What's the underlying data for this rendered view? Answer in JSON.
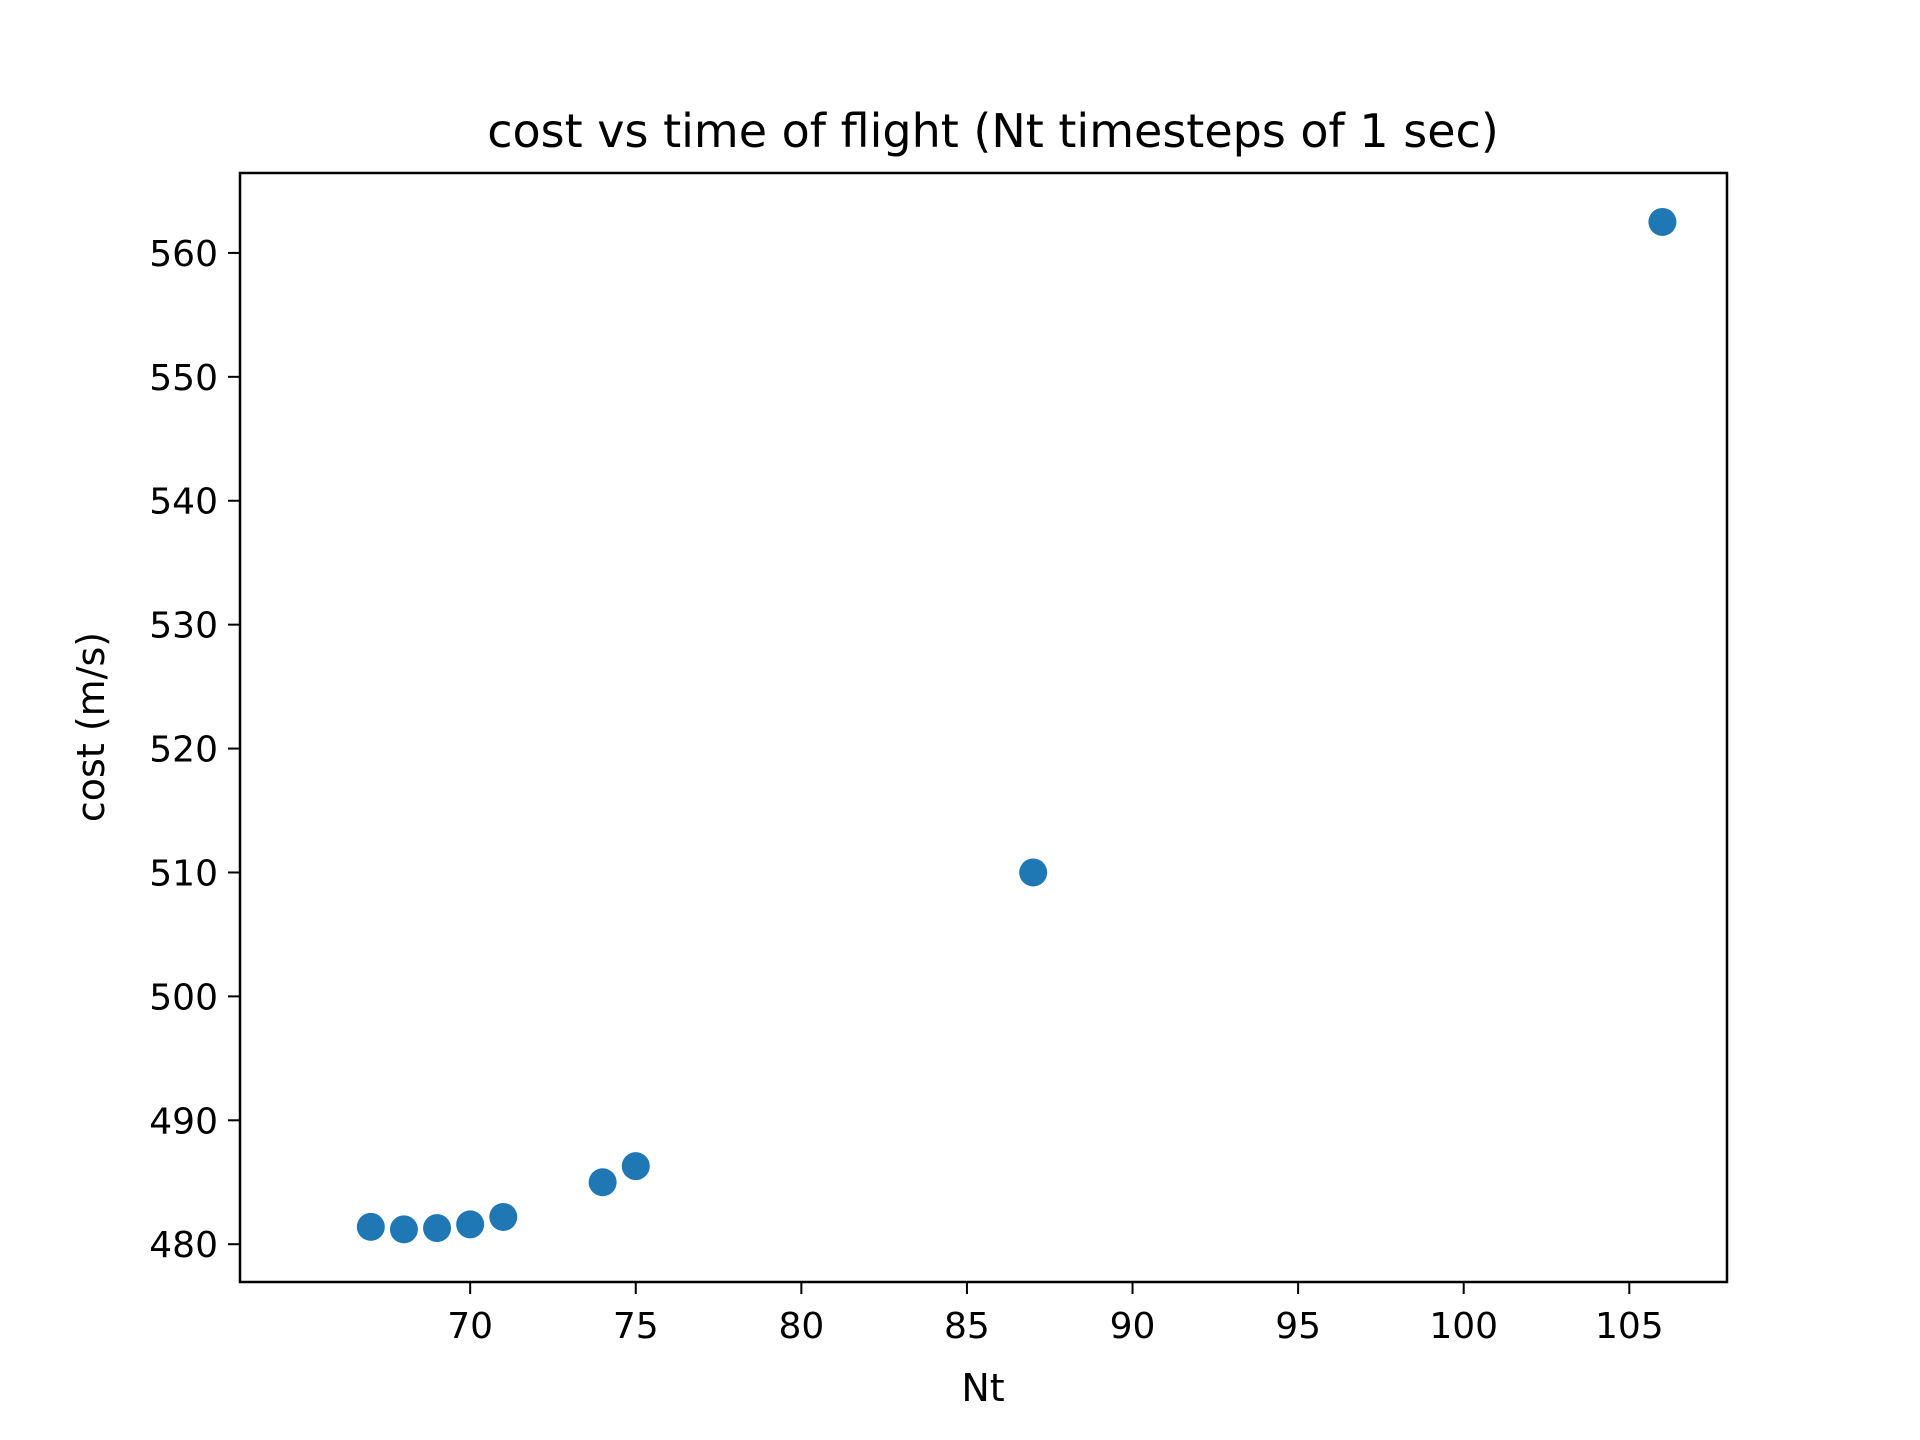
{
  "chart_data": {
    "type": "scatter",
    "title": "cost vs time of flight (Nt timesteps of 1 sec)",
    "xlabel": "Nt",
    "ylabel": "cost (m/s)",
    "xlim": [
      63.05,
      107.95
    ],
    "ylim": [
      476.95,
      566.45
    ],
    "xticks": [
      70,
      75,
      80,
      85,
      90,
      95,
      100,
      105
    ],
    "yticks": [
      480,
      490,
      500,
      510,
      520,
      530,
      540,
      550,
      560
    ],
    "grid": false,
    "legend": "none",
    "marker_color": "#1f77b4",
    "series": [
      {
        "x": [
          67,
          68,
          69,
          70,
          71,
          74,
          75,
          87,
          106
        ],
        "y": [
          481.4,
          481.2,
          481.3,
          481.6,
          482.2,
          485.0,
          486.3,
          510.0,
          562.5
        ]
      }
    ]
  }
}
